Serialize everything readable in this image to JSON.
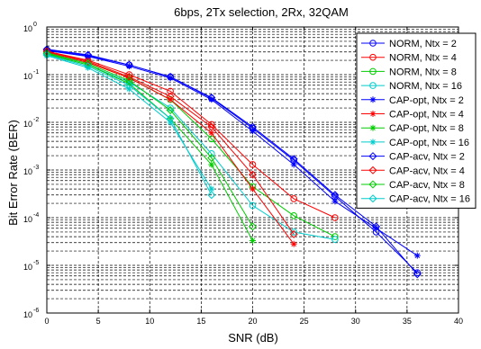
{
  "chart_data": {
    "type": "line",
    "title": "6bps, 2Tx selection, 2Rx, 32QAM",
    "xlabel": "SNR (dB)",
    "ylabel": "Bit Error Rate (BER)",
    "x_ticks": [
      "0",
      "5",
      "10",
      "15",
      "20",
      "25",
      "30",
      "35",
      "40"
    ],
    "y_ticks": [
      {
        "base": "10",
        "exp": "0"
      },
      {
        "base": "10",
        "exp": "-1"
      },
      {
        "base": "10",
        "exp": "-2"
      },
      {
        "base": "10",
        "exp": "-3"
      },
      {
        "base": "10",
        "exp": "-4"
      },
      {
        "base": "10",
        "exp": "-5"
      },
      {
        "base": "10",
        "exp": "-6"
      }
    ],
    "xlim": [
      0,
      40
    ],
    "ylim": [
      1e-06,
      1
    ],
    "yscale": "log",
    "grid": true,
    "legend_position": "top-right",
    "series": [
      {
        "name": "NORM, Ntx = 2",
        "color": "#0000ff",
        "marker": "circle",
        "x": [
          0,
          4,
          8,
          12,
          16,
          20,
          24,
          28,
          32,
          36
        ],
        "y": [
          0.33,
          0.25,
          0.16,
          0.09,
          0.032,
          0.0075,
          0.0016,
          0.00028,
          5e-05,
          7e-06
        ]
      },
      {
        "name": "NORM, Ntx = 4",
        "color": "#ff0000",
        "marker": "circle",
        "x": [
          0,
          4,
          8,
          12,
          16,
          20,
          24,
          28
        ],
        "y": [
          0.31,
          0.2,
          0.1,
          0.045,
          0.009,
          0.0013,
          0.00025,
          0.0001
        ]
      },
      {
        "name": "NORM, Ntx = 8",
        "color": "#00cc00",
        "marker": "circle",
        "x": [
          0,
          4,
          8,
          12,
          16,
          20,
          24,
          28
        ],
        "y": [
          0.29,
          0.18,
          0.085,
          0.03,
          0.0045,
          0.00045,
          0.00011,
          4e-05
        ]
      },
      {
        "name": "NORM, Ntx = 16",
        "color": "#00cccc",
        "marker": "circle",
        "x": [
          0,
          4,
          8,
          12,
          16,
          20,
          24,
          28
        ],
        "y": [
          0.27,
          0.16,
          0.07,
          0.02,
          0.0022,
          0.00018,
          5e-05,
          3.5e-05
        ]
      },
      {
        "name": "CAP-opt, Ntx = 2",
        "color": "#0000ff",
        "marker": "star",
        "x": [
          0,
          4,
          8,
          12,
          16,
          20,
          24,
          28,
          32,
          36
        ],
        "y": [
          0.32,
          0.24,
          0.15,
          0.085,
          0.03,
          0.0065,
          0.0013,
          0.00022,
          6e-05,
          1.6e-05
        ]
      },
      {
        "name": "CAP-opt, Ntx = 4",
        "color": "#ff0000",
        "marker": "star",
        "x": [
          0,
          4,
          8,
          12,
          16,
          20,
          24
        ],
        "y": [
          0.3,
          0.18,
          0.085,
          0.03,
          0.006,
          0.0004,
          2.8e-05
        ]
      },
      {
        "name": "CAP-opt, Ntx = 8",
        "color": "#00cc00",
        "marker": "star",
        "x": [
          0,
          4,
          8,
          12,
          16,
          20
        ],
        "y": [
          0.27,
          0.16,
          0.065,
          0.012,
          0.0013,
          3.3e-05
        ]
      },
      {
        "name": "CAP-opt, Ntx = 16",
        "color": "#00cccc",
        "marker": "star",
        "x": [
          0,
          4,
          8,
          12,
          16
        ],
        "y": [
          0.25,
          0.14,
          0.05,
          0.01,
          0.0004
        ]
      },
      {
        "name": "CAP-acv, Ntx = 2",
        "color": "#0000ff",
        "marker": "diamond",
        "x": [
          0,
          4,
          8,
          12,
          16,
          20,
          24,
          28,
          32,
          36
        ],
        "y": [
          0.34,
          0.26,
          0.16,
          0.09,
          0.033,
          0.008,
          0.0017,
          0.0003,
          6.5e-05,
          6.5e-06
        ]
      },
      {
        "name": "CAP-acv, Ntx = 4",
        "color": "#ff0000",
        "marker": "diamond",
        "x": [
          0,
          4,
          8,
          12,
          16,
          20,
          24
        ],
        "y": [
          0.31,
          0.19,
          0.09,
          0.035,
          0.008,
          0.0008,
          4.5e-05
        ]
      },
      {
        "name": "CAP-acv, Ntx = 8",
        "color": "#00cc00",
        "marker": "diamond",
        "x": [
          0,
          4,
          8,
          12,
          16,
          20
        ],
        "y": [
          0.28,
          0.17,
          0.075,
          0.018,
          0.0018,
          6.5e-05
        ]
      },
      {
        "name": "CAP-acv, Ntx = 16",
        "color": "#00cccc",
        "marker": "diamond",
        "x": [
          0,
          4,
          8,
          12,
          16
        ],
        "y": [
          0.26,
          0.15,
          0.06,
          0.012,
          0.0003
        ]
      }
    ]
  }
}
